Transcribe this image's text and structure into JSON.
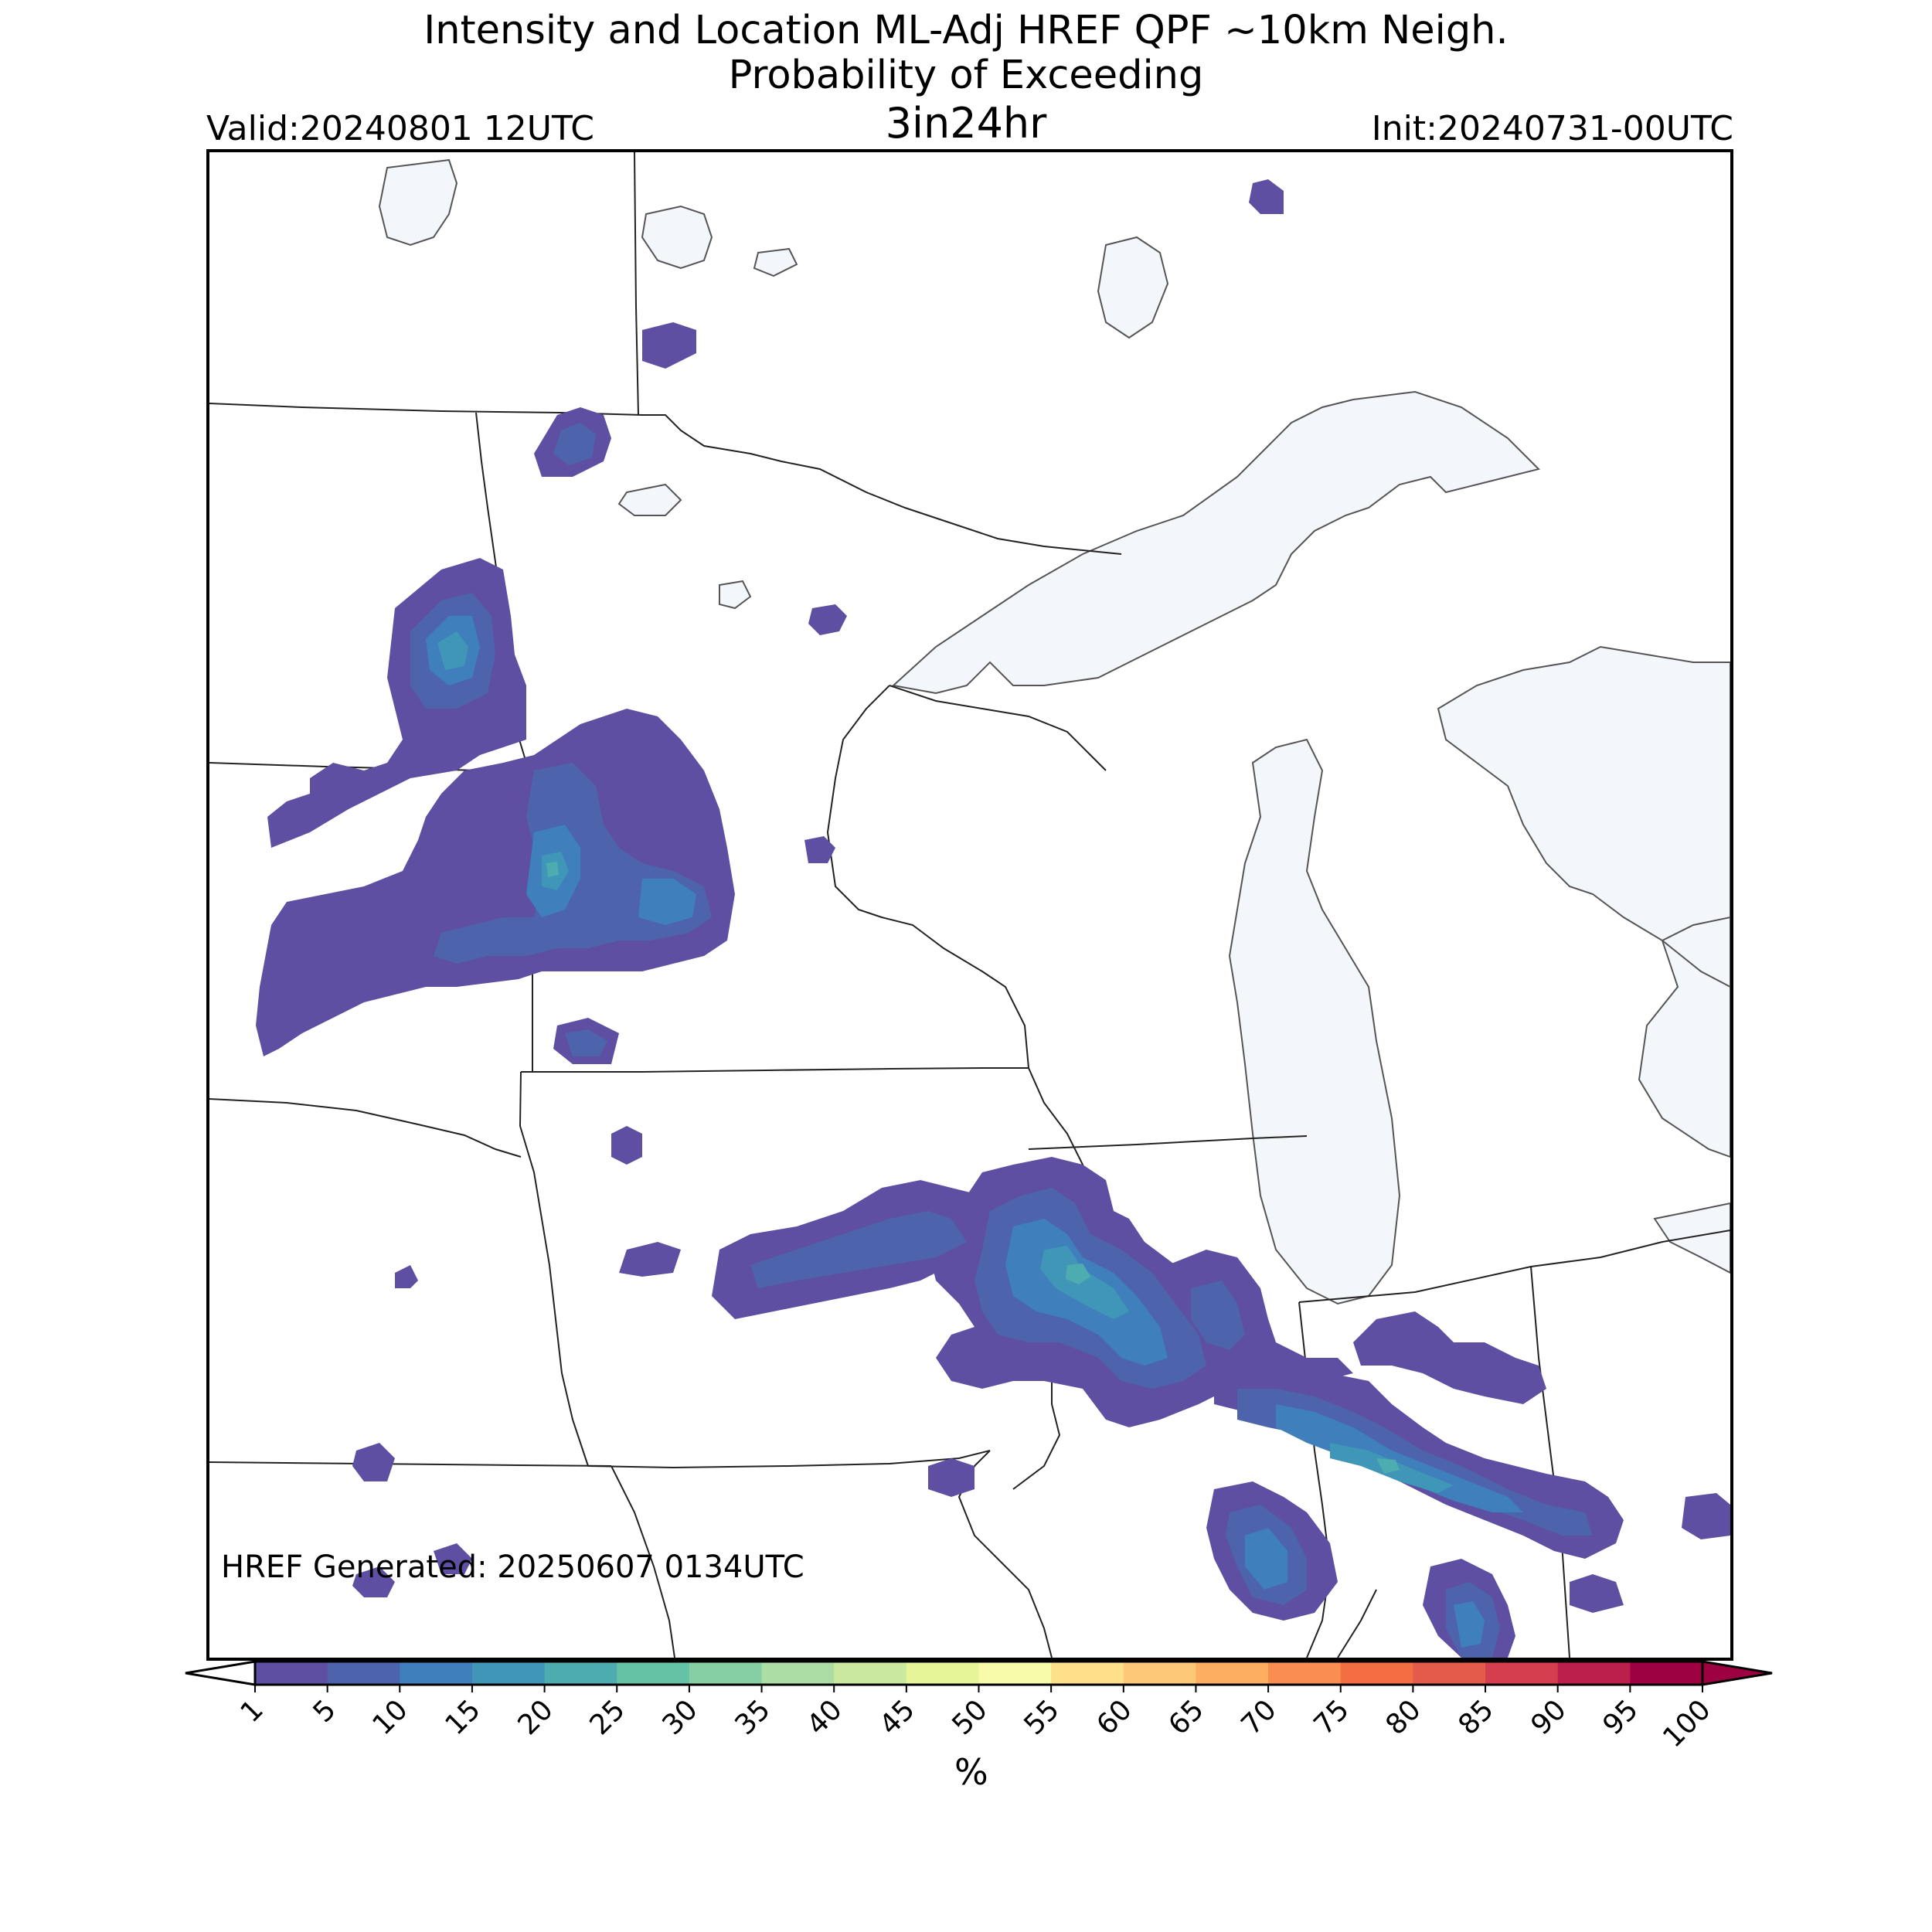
{
  "title": {
    "line1": "Intensity and Location ML-Adj HREF QPF ~10km Neigh.",
    "line2": "Probability of Exceeding",
    "threshold": "3in24hr",
    "valid": "Valid:20240801 12UTC",
    "init": "Init:20240731-00UTC"
  },
  "footer": {
    "generated": "HREF Generated: 20250607 0134UTC"
  },
  "colorbar": {
    "unit": "%",
    "levels": [
      "1",
      "5",
      "10",
      "15",
      "20",
      "25",
      "30",
      "35",
      "40",
      "45",
      "50",
      "55",
      "60",
      "65",
      "70",
      "75",
      "80",
      "85",
      "90",
      "95",
      "100"
    ],
    "colors": [
      "#5e4fa2",
      "#4d64ad",
      "#3f7fbb",
      "#3f96b7",
      "#4dacb0",
      "#66c2a5",
      "#86cfa5",
      "#abdda4",
      "#cbe99e",
      "#e6f598",
      "#f6faa9",
      "#fee08b",
      "#fec977",
      "#fdae61",
      "#f98e52",
      "#f46d43",
      "#e45c49",
      "#d53e4f",
      "#bd1f4c",
      "#9e0142"
    ],
    "under_color": "#ffffff",
    "over_color": "#9e0142"
  },
  "map": {
    "water_color": "#f3f6fa",
    "probability_fill_colors": {
      "p1": "#5e4fa2",
      "p5": "#4d64ad",
      "p10": "#3f7fbb",
      "p15": "#3f96b7",
      "p20": "#4dacb0"
    }
  }
}
